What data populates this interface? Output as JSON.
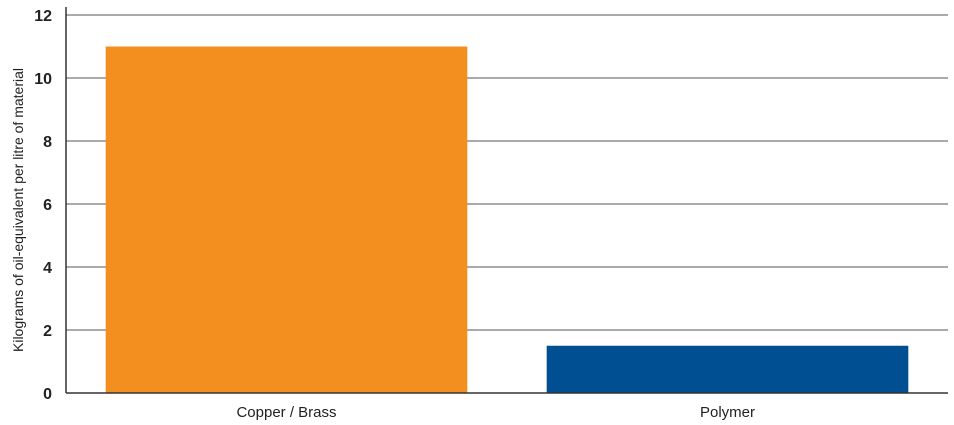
{
  "chart_data": {
    "type": "bar",
    "categories": [
      "Copper / Brass",
      "Polymer"
    ],
    "values": [
      11.0,
      1.5
    ],
    "colors": [
      "#f38f1e",
      "#004f93"
    ],
    "title": "",
    "xlabel": "",
    "ylabel": "Kilograms of oil-equivalent per litre of material",
    "ylim": [
      0,
      12
    ],
    "yticks": [
      "0",
      "2",
      "4",
      "6",
      "8",
      "10",
      "12"
    ],
    "grid": true,
    "legend": "none"
  }
}
